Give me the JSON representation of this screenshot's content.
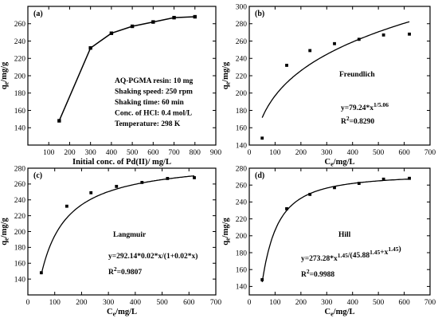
{
  "chart_data": [
    {
      "id": "a",
      "type": "line",
      "panel_label": "(a)",
      "xlabel": "Initial conc. of Pd(II)/ mg/L",
      "ylabel": "qe/mg/g",
      "xlim": [
        0,
        900
      ],
      "ylim": [
        120,
        280
      ],
      "xticks": [
        100,
        200,
        300,
        400,
        500,
        600,
        700,
        800,
        900
      ],
      "yticks": [
        140,
        160,
        180,
        200,
        220,
        240,
        260
      ],
      "points": [
        [
          150,
          148
        ],
        [
          300,
          232
        ],
        [
          400,
          249
        ],
        [
          500,
          257
        ],
        [
          600,
          262
        ],
        [
          700,
          267
        ],
        [
          800,
          268
        ]
      ],
      "annotations": [
        "AQ-PGMA resin: 10 mg",
        "Shaking speed: 250 rpm",
        "Shaking time: 60 min",
        "Conc. of HCl: 0.4 mol/L",
        "Temperature: 298 K"
      ]
    },
    {
      "id": "b",
      "type": "scatter",
      "panel_label": "(b)",
      "model_name": "Freundlich",
      "equation": "y=79.24*x^(1/5.06)",
      "r2": "R²=0.8290",
      "xlabel": "Ce/mg/L",
      "ylabel": "qe/mg/g",
      "xlim": [
        0,
        700
      ],
      "ylim": [
        140,
        300
      ],
      "xticks": [
        0,
        100,
        200,
        300,
        400,
        500,
        600,
        700
      ],
      "yticks": [
        140,
        160,
        180,
        200,
        220,
        240,
        260,
        280,
        300
      ],
      "points": [
        [
          50,
          148
        ],
        [
          145,
          232
        ],
        [
          235,
          249
        ],
        [
          330,
          257
        ],
        [
          425,
          262
        ],
        [
          520,
          267
        ],
        [
          620,
          268
        ]
      ],
      "fit": {
        "kind": "freundlich",
        "K": 79.24,
        "n": 5.06,
        "x_range": [
          50,
          620
        ]
      }
    },
    {
      "id": "c",
      "type": "scatter",
      "panel_label": "(c)",
      "model_name": "Langmuir",
      "equation": "y=292.14*0.02*x/(1+0.02*x)",
      "r2": "R²=0.9807",
      "xlabel": "Ce/mg/L",
      "ylabel": "qe/mg/g",
      "xlim": [
        0,
        700
      ],
      "ylim": [
        120,
        280
      ],
      "xticks": [
        0,
        100,
        200,
        300,
        400,
        500,
        600,
        700
      ],
      "yticks": [
        140,
        160,
        180,
        200,
        220,
        240,
        260,
        280
      ],
      "points": [
        [
          50,
          148
        ],
        [
          145,
          232
        ],
        [
          235,
          249
        ],
        [
          330,
          257
        ],
        [
          425,
          262
        ],
        [
          520,
          267
        ],
        [
          620,
          268
        ]
      ],
      "fit": {
        "kind": "langmuir",
        "qm": 292.14,
        "K": 0.02,
        "x_range": [
          50,
          620
        ]
      }
    },
    {
      "id": "d",
      "type": "scatter",
      "panel_label": "(d)",
      "model_name": "Hill",
      "equation": "y=273.28*x^1.45/(45.88^1.45+x^1.45)",
      "r2": "R²=0.9988",
      "xlabel": "Ce/mg/L",
      "ylabel": "qe/mg/g",
      "xlim": [
        0,
        700
      ],
      "ylim": [
        130,
        280
      ],
      "xticks": [
        0,
        100,
        200,
        300,
        400,
        500,
        600,
        700
      ],
      "yticks": [
        140,
        160,
        180,
        200,
        220,
        240,
        260,
        280
      ],
      "points": [
        [
          50,
          148
        ],
        [
          145,
          232
        ],
        [
          235,
          249
        ],
        [
          330,
          257
        ],
        [
          425,
          262
        ],
        [
          520,
          267
        ],
        [
          620,
          268
        ]
      ],
      "fit": {
        "kind": "hill",
        "qm": 273.28,
        "K": 45.88,
        "n": 1.45,
        "x_range": [
          50,
          620
        ]
      }
    }
  ]
}
